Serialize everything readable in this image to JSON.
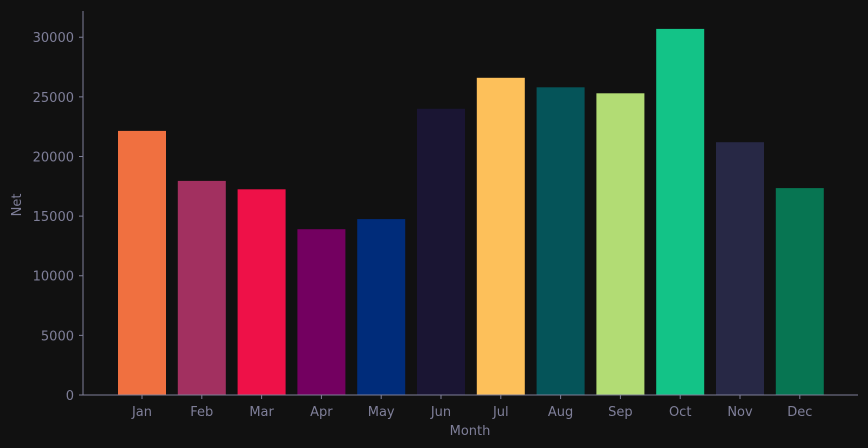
{
  "chart_data": {
    "type": "bar",
    "title": "",
    "xlabel": "Month",
    "ylabel": "Net",
    "categories": [
      "Jan",
      "Feb",
      "Mar",
      "Apr",
      "May",
      "Jun",
      "Jul",
      "Aug",
      "Sep",
      "Oct",
      "Nov",
      "Dec"
    ],
    "values": [
      22150,
      17950,
      17250,
      13900,
      14750,
      24000,
      26600,
      25800,
      25300,
      30700,
      21200,
      17350
    ],
    "colors": [
      "#f07040",
      "#a23060",
      "#ee1148",
      "#730060",
      "#002c7a",
      "#1a1533",
      "#fdc05a",
      "#055459",
      "#b2dc74",
      "#13c387",
      "#272845",
      "#077552"
    ],
    "ylim": [
      0,
      32200
    ],
    "yticks": [
      0,
      5000,
      10000,
      15000,
      20000,
      25000,
      30000
    ],
    "grid": false,
    "legend": "none",
    "axis_color": "#7f7f99",
    "background": "#111111"
  }
}
